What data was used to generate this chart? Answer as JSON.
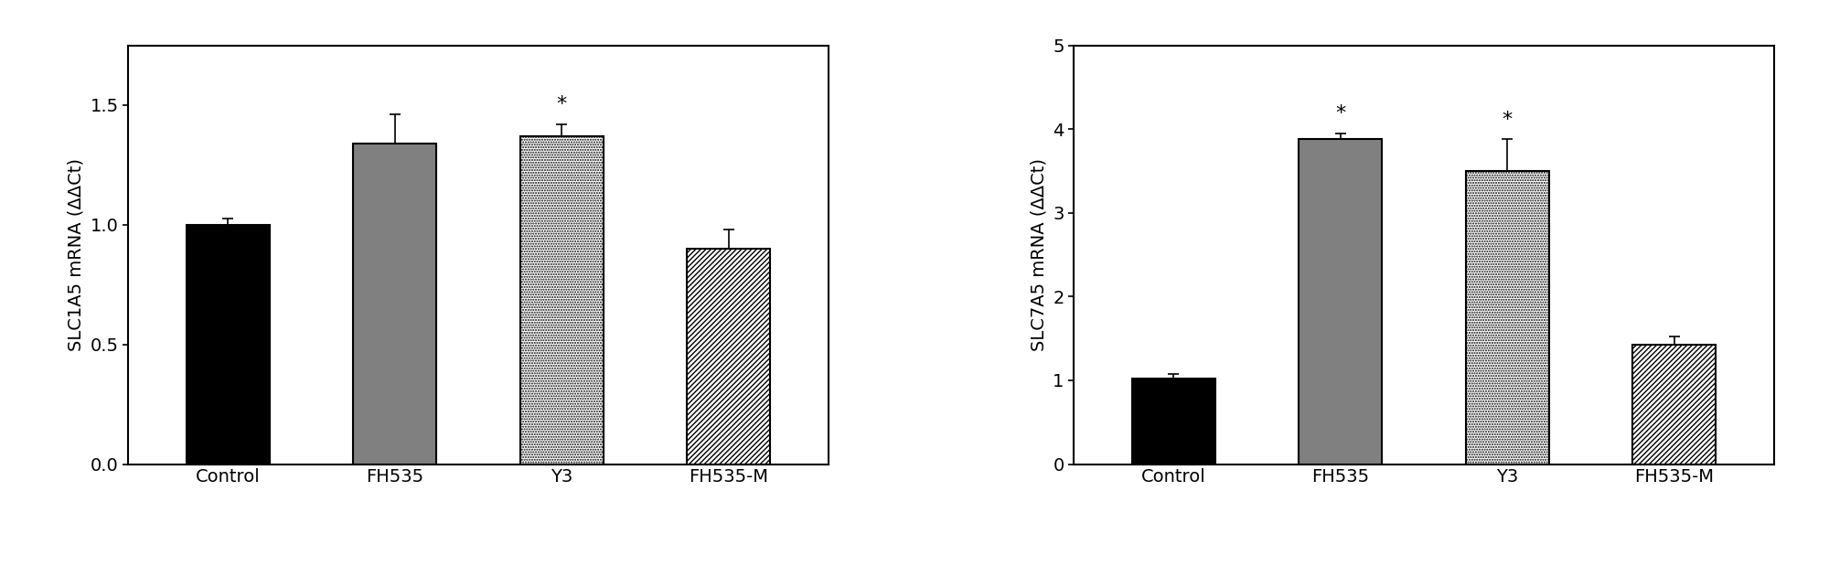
{
  "chart1": {
    "ylabel": "SLC1A5 mRNA (ΔΔCt)",
    "categories": [
      "Control",
      "FH535",
      "Y3",
      "FH535-M"
    ],
    "values": [
      1.0,
      1.34,
      1.37,
      0.9
    ],
    "errors": [
      0.025,
      0.12,
      0.05,
      0.08
    ],
    "ylim": [
      0,
      1.75
    ],
    "yticks": [
      0.0,
      0.5,
      1.0,
      1.5
    ],
    "ytick_labels": [
      "0.0",
      "0.5",
      "1.0",
      "1.5"
    ],
    "significance": [
      false,
      false,
      true,
      false
    ],
    "bar_styles": [
      "solid_black",
      "solid_gray",
      "dotted_white",
      "hatch_white"
    ]
  },
  "chart2": {
    "ylabel": "SLC7A5 mRNA (ΔΔCt)",
    "categories": [
      "Control",
      "FH535",
      "Y3",
      "FH535-M"
    ],
    "values": [
      1.02,
      3.88,
      3.5,
      1.42
    ],
    "errors": [
      0.06,
      0.07,
      0.38,
      0.1
    ],
    "ylim": [
      0,
      5.0
    ],
    "yticks": [
      0,
      1,
      2,
      3,
      4,
      5
    ],
    "ytick_labels": [
      "0",
      "1",
      "2",
      "3",
      "4",
      "5"
    ],
    "significance": [
      false,
      true,
      true,
      false
    ],
    "bar_styles": [
      "solid_black",
      "solid_gray",
      "dotted_white",
      "hatch_white"
    ]
  },
  "background_color": "#ffffff",
  "font_size_ticks": 14,
  "font_size_ylabel": 14,
  "font_size_xlabel": 14,
  "font_size_star": 16,
  "bar_width": 0.5,
  "spine_linewidth": 1.5
}
